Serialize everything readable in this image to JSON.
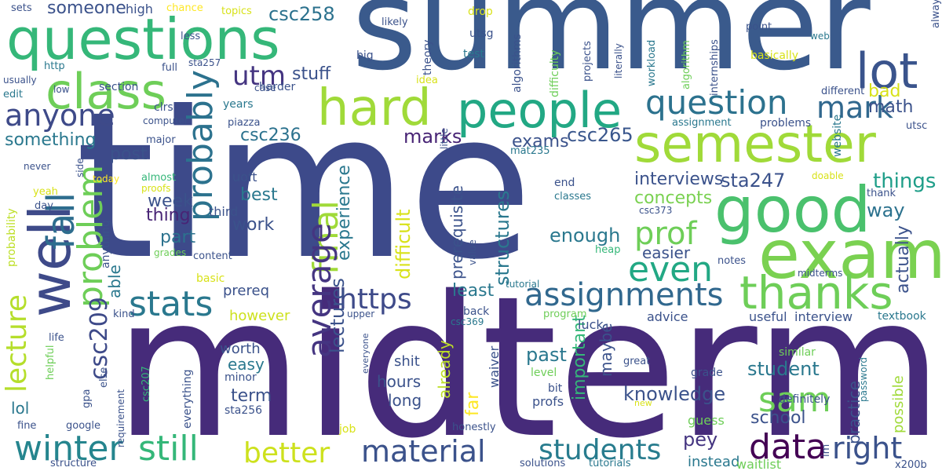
{
  "words": [
    {
      "text": "time",
      "color": "#3d4a8a"
    },
    {
      "text": "midterm",
      "color": "#462b7a"
    },
    {
      "text": "summer",
      "color": "#3a5a8c"
    },
    {
      "text": "questions",
      "color": "#35b779"
    },
    {
      "text": "exam",
      "color": "#7ad151"
    },
    {
      "text": "semester",
      "color": "#a0da39"
    },
    {
      "text": "good",
      "color": "#4ac16d"
    },
    {
      "text": "people",
      "color": "#22a884"
    },
    {
      "text": "class",
      "color": "#6ece58"
    },
    {
      "text": "hard",
      "color": "#a0da39"
    },
    {
      "text": "lot",
      "color": "#3a548c"
    },
    {
      "text": "well",
      "color": "#3e4a89"
    },
    {
      "text": "thanks",
      "color": "#6ece58"
    },
    {
      "text": "question",
      "color": "#2c728e"
    },
    {
      "text": "assignments",
      "color": "#31688e"
    },
    {
      "text": "material",
      "color": "#3b528b"
    },
    {
      "text": "students",
      "color": "#287c8e"
    },
    {
      "text": "winter",
      "color": "#25858e"
    },
    {
      "text": "still",
      "color": "#35b779"
    },
    {
      "text": "data",
      "color": "#440154"
    },
    {
      "text": "right",
      "color": "#3b528b"
    },
    {
      "text": "anyone",
      "color": "#3e4a89"
    },
    {
      "text": "probably",
      "color": "#2c728e"
    },
    {
      "text": "mark",
      "color": "#31688e"
    },
    {
      "text": "utm",
      "color": "#453581"
    },
    {
      "text": "prof",
      "color": "#6ece58"
    },
    {
      "text": "even",
      "color": "#22a884"
    },
    {
      "text": "final",
      "color": "#a0da39"
    },
    {
      "text": "average",
      "color": "#453581"
    },
    {
      "text": "stats",
      "color": "#2a788e"
    },
    {
      "text": "https",
      "color": "#3e4a89"
    },
    {
      "text": "better",
      "color": "#cde11d"
    },
    {
      "text": "fall",
      "color": "#2e6d8e"
    },
    {
      "text": "problem",
      "color": "#6ece58"
    },
    {
      "text": "lecture",
      "color": "#b5de2b"
    },
    {
      "text": "sam",
      "color": "#6ece58"
    },
    {
      "text": "csc209",
      "color": "#3e4a89"
    },
    {
      "text": "csc265",
      "color": "#39568c"
    },
    {
      "text": "csc236",
      "color": "#2c728e"
    },
    {
      "text": "sta247",
      "color": "#3b528b"
    },
    {
      "text": "stuff",
      "color": "#3b528b"
    },
    {
      "text": "csc258",
      "color": "#2c728e"
    },
    {
      "text": "someone",
      "color": "#3b528b"
    },
    {
      "text": "interviews",
      "color": "#3b528b"
    },
    {
      "text": "things",
      "color": "#1f9e89"
    },
    {
      "text": "way",
      "color": "#2c728e"
    },
    {
      "text": "concepts",
      "color": "#7ad151"
    },
    {
      "text": "enough",
      "color": "#2a788e"
    },
    {
      "text": "easier",
      "color": "#3b528b"
    },
    {
      "text": "student",
      "color": "#2a788e"
    },
    {
      "text": "knowledge",
      "color": "#3b528b"
    },
    {
      "text": "school",
      "color": "#3b528b"
    },
    {
      "text": "pey",
      "color": "#453581"
    },
    {
      "text": "past",
      "color": "#2a788e"
    },
    {
      "text": "structures",
      "color": "#2a788e"
    },
    {
      "text": "exams",
      "color": "#3b528b"
    },
    {
      "text": "marks",
      "color": "#482475"
    },
    {
      "text": "experience",
      "color": "#2a788e"
    },
    {
      "text": "lectures",
      "color": "#3b528b"
    },
    {
      "text": "difficult",
      "color": "#d8e219"
    },
    {
      "text": "least",
      "color": "#2a788e"
    },
    {
      "text": "prerequisite",
      "color": "#3b528b"
    },
    {
      "text": "something",
      "color": "#2a788e"
    },
    {
      "text": "post",
      "color": "#3b528b"
    },
    {
      "text": "week",
      "color": "#3b528b"
    },
    {
      "text": "thing",
      "color": "#482475"
    },
    {
      "text": "work",
      "color": "#3b528b"
    },
    {
      "text": "part",
      "color": "#2c728e"
    },
    {
      "text": "best",
      "color": "#2a788e"
    },
    {
      "text": "third",
      "color": "#3b528b"
    },
    {
      "text": "uoft",
      "color": "#3b528b"
    },
    {
      "text": "able",
      "color": "#2a788e"
    },
    {
      "text": "however",
      "color": "#cde11d"
    },
    {
      "text": "prereq",
      "color": "#3b528b"
    },
    {
      "text": "easy",
      "color": "#2a788e"
    },
    {
      "text": "worth",
      "color": "#3b528b"
    },
    {
      "text": "term",
      "color": "#3b528b"
    },
    {
      "text": "lol",
      "color": "#2a788e"
    },
    {
      "text": "hours",
      "color": "#3b528b"
    },
    {
      "text": "long",
      "color": "#3b528b"
    },
    {
      "text": "shit",
      "color": "#3b528b"
    },
    {
      "text": "far",
      "color": "#fde725"
    },
    {
      "text": "already",
      "color": "#bddf26"
    },
    {
      "text": "important",
      "color": "#35b779"
    },
    {
      "text": "maybe",
      "color": "#3b528b"
    },
    {
      "text": "bad",
      "color": "#d8e219"
    },
    {
      "text": "math",
      "color": "#3b528b"
    },
    {
      "text": "actually",
      "color": "#3b528b"
    },
    {
      "text": "practice",
      "color": "#3b528b"
    },
    {
      "text": "possible",
      "color": "#a0da39"
    },
    {
      "text": "instead",
      "color": "#2a788e"
    },
    {
      "text": "guess",
      "color": "#6ece58"
    },
    {
      "text": "interview",
      "color": "#3b528b"
    },
    {
      "text": "advice",
      "color": "#3b528b"
    },
    {
      "text": "luck",
      "color": "#3b528b"
    },
    {
      "text": "useful",
      "color": "#3b528b"
    },
    {
      "text": "textbook",
      "color": "#2a788e"
    },
    {
      "text": "similar",
      "color": "#6ece58"
    },
    {
      "text": "definitely",
      "color": "#3b528b"
    },
    {
      "text": "grade",
      "color": "#3b528b"
    },
    {
      "text": "great",
      "color": "#3b528b"
    },
    {
      "text": "profs",
      "color": "#3b528b"
    },
    {
      "text": "bit",
      "color": "#3b528b"
    },
    {
      "text": "level",
      "color": "#6ece58"
    },
    {
      "text": "waiver",
      "color": "#3b528b"
    },
    {
      "text": "solutions",
      "color": "#3b528b"
    },
    {
      "text": "tutorials",
      "color": "#2a788e"
    },
    {
      "text": "waitlist",
      "color": "#6ece58"
    },
    {
      "text": "structure",
      "color": "#3b528b"
    },
    {
      "text": "x200b",
      "color": "#3b528b"
    },
    {
      "text": "job",
      "color": "#d8e219"
    },
    {
      "text": "honestly",
      "color": "#3b528b"
    },
    {
      "text": "google",
      "color": "#3b528b"
    },
    {
      "text": "fine",
      "color": "#3b528b"
    },
    {
      "text": "gpa",
      "color": "#3b528b"
    },
    {
      "text": "minor",
      "color": "#3b528b"
    },
    {
      "text": "sta256",
      "color": "#3b528b"
    },
    {
      "text": "everything",
      "color": "#3b528b"
    },
    {
      "text": "csc207",
      "color": "#35b779"
    },
    {
      "text": "helpful",
      "color": "#6ece58"
    },
    {
      "text": "life",
      "color": "#3b528b"
    },
    {
      "text": "kind",
      "color": "#3b528b"
    },
    {
      "text": "else",
      "color": "#3b528b"
    },
    {
      "text": "requirement",
      "color": "#3b528b"
    },
    {
      "text": "basic",
      "color": "#d8e219"
    },
    {
      "text": "content",
      "color": "#3b528b"
    },
    {
      "text": "grades",
      "color": "#6ece58"
    },
    {
      "text": "anything",
      "color": "#3b528b"
    },
    {
      "text": "probability",
      "color": "#bddf26"
    },
    {
      "text": "yeah",
      "color": "#d8e219"
    },
    {
      "text": "day",
      "color": "#3b528b"
    },
    {
      "text": "almost",
      "color": "#35b779"
    },
    {
      "text": "proofs",
      "color": "#d8e219"
    },
    {
      "text": "today",
      "color": "#fde725"
    },
    {
      "text": "never",
      "color": "#3b528b"
    },
    {
      "text": "side",
      "color": "#3b528b"
    },
    {
      "text": "major",
      "color": "#3b528b"
    },
    {
      "text": "computer",
      "color": "#3b528b"
    },
    {
      "text": "clrs",
      "color": "#3b528b"
    },
    {
      "text": "piazza",
      "color": "#3b528b"
    },
    {
      "text": "years",
      "color": "#2a788e"
    },
    {
      "text": "case",
      "color": "#3b528b"
    },
    {
      "text": "harder",
      "color": "#3b528b"
    },
    {
      "text": "section",
      "color": "#3b528b"
    },
    {
      "text": "edit",
      "color": "#2a788e"
    },
    {
      "text": "full",
      "color": "#3b528b"
    },
    {
      "text": "sta257",
      "color": "#3b528b"
    },
    {
      "text": "http",
      "color": "#2a788e"
    },
    {
      "text": "low",
      "color": "#3b528b"
    },
    {
      "text": "usually",
      "color": "#3b528b"
    },
    {
      "text": "less",
      "color": "#3b528b"
    },
    {
      "text": "high",
      "color": "#3b528b"
    },
    {
      "text": "chance",
      "color": "#fde725"
    },
    {
      "text": "topics",
      "color": "#d8e219"
    },
    {
      "text": "sets",
      "color": "#3b528b"
    },
    {
      "text": "drop",
      "color": "#d8e219"
    },
    {
      "text": "likely",
      "color": "#3b528b"
    },
    {
      "text": "utsg",
      "color": "#3b528b"
    },
    {
      "text": "test",
      "color": "#2a788e"
    },
    {
      "text": "big",
      "color": "#3b528b"
    },
    {
      "text": "theory",
      "color": "#3b528b"
    },
    {
      "text": "idea",
      "color": "#d8e219"
    },
    {
      "text": "algorithms",
      "color": "#3b528b"
    },
    {
      "text": "difficulty",
      "color": "#6ece58"
    },
    {
      "text": "projects",
      "color": "#3b528b"
    },
    {
      "text": "literally",
      "color": "#3b528b"
    },
    {
      "text": "workload",
      "color": "#2a788e"
    },
    {
      "text": "algorithm",
      "color": "#6ece58"
    },
    {
      "text": "internships",
      "color": "#3b528b"
    },
    {
      "text": "point",
      "color": "#3b528b"
    },
    {
      "text": "basically",
      "color": "#d8e219"
    },
    {
      "text": "web",
      "color": "#2a788e"
    },
    {
      "text": "always",
      "color": "#3b528b"
    },
    {
      "text": "different",
      "color": "#3b528b"
    },
    {
      "text": "little",
      "color": "#3b528b"
    },
    {
      "text": "mat235",
      "color": "#2a788e"
    },
    {
      "text": "website",
      "color": "#2a788e"
    },
    {
      "text": "utsc",
      "color": "#3b528b"
    },
    {
      "text": "assignment",
      "color": "#2a788e"
    },
    {
      "text": "problems",
      "color": "#3b528b"
    },
    {
      "text": "doable",
      "color": "#d8e219"
    },
    {
      "text": "thank",
      "color": "#3b528b"
    },
    {
      "text": "end",
      "color": "#3b528b"
    },
    {
      "text": "classes",
      "color": "#2a788e"
    },
    {
      "text": "csc373",
      "color": "#3b528b"
    },
    {
      "text": "heap",
      "color": "#35b779"
    },
    {
      "text": "value",
      "color": "#3b528b"
    },
    {
      "text": "notes",
      "color": "#3b528b"
    },
    {
      "text": "midterms",
      "color": "#3b528b"
    },
    {
      "text": "tutorial",
      "color": "#2a788e"
    },
    {
      "text": "upper",
      "color": "#3b528b"
    },
    {
      "text": "back",
      "color": "#3b528b"
    },
    {
      "text": "program",
      "color": "#6ece58"
    },
    {
      "text": "csc369",
      "color": "#2a788e"
    },
    {
      "text": "everyone",
      "color": "#3b528b"
    },
    {
      "text": "new",
      "color": "#d8e219"
    },
    {
      "text": "password",
      "color": "#2a788e"
    },
    {
      "text": "im",
      "color": "#3b528b"
    }
  ]
}
